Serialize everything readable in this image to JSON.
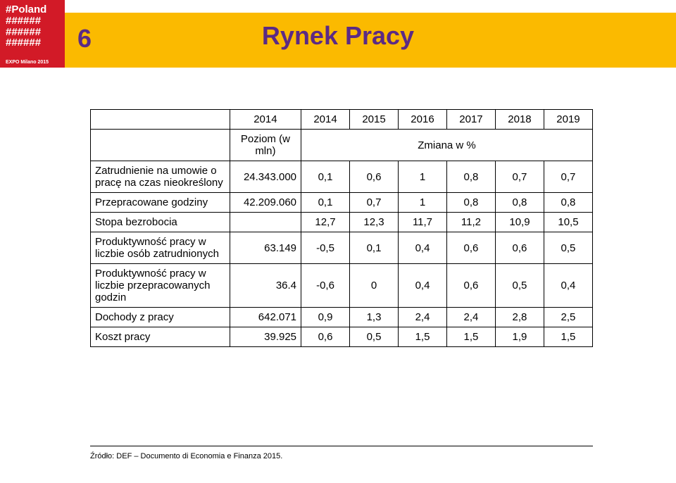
{
  "logo": {
    "line1": "#Poland",
    "hash_rows": [
      "######",
      "######",
      "######"
    ],
    "subtitle": "EXPO Milano 2015"
  },
  "page_number": "6",
  "title": "Rynek Pracy",
  "table": {
    "years": [
      "2014",
      "2014",
      "2015",
      "2016",
      "2017",
      "2018",
      "2019"
    ],
    "subheader_left": "Poziom (w mln)",
    "subheader_right": "Zmiana w %",
    "rows": [
      {
        "label": "Zatrudnienie na umowie o pracę na czas nieokreślony",
        "level": "24.343.000",
        "vals": [
          "0,1",
          "0,6",
          "1",
          "0,8",
          "0,7",
          "0,7"
        ]
      },
      {
        "label": "Przepracowane godziny",
        "level": "42.209.060",
        "vals": [
          "0,1",
          "0,7",
          "1",
          "0,8",
          "0,8",
          "0,8"
        ]
      },
      {
        "label": "Stopa bezrobocia",
        "level": "",
        "vals": [
          "12,7",
          "12,3",
          "11,7",
          "11,2",
          "10,9",
          "10,5"
        ]
      },
      {
        "label": "Produktywność pracy w liczbie osób zatrudnionych",
        "level": "63.149",
        "vals": [
          "-0,5",
          "0,1",
          "0,4",
          "0,6",
          "0,6",
          "0,5"
        ]
      },
      {
        "label": "Produktywność pracy w liczbie przepracowanych godzin",
        "level": "36.4",
        "vals": [
          "-0,6",
          "0",
          "0,4",
          "0,6",
          "0,5",
          "0,4"
        ]
      },
      {
        "label": "Dochody z pracy",
        "level": "642.071",
        "vals": [
          "0,9",
          "1,3",
          "2,4",
          "2,4",
          "2,8",
          "2,5"
        ]
      },
      {
        "label": "Koszt pracy",
        "level": "39.925",
        "vals": [
          "0,6",
          "0,5",
          "1,5",
          "1,5",
          "1,9",
          "1,5"
        ]
      }
    ]
  },
  "source": "Źródło: DEF – Documento di Economia e Finanza 2015.",
  "colors": {
    "brand_purple": "#5b2a85",
    "brand_yellow": "#fbba00",
    "brand_red": "#d21a27",
    "text": "#000000",
    "background": "#ffffff"
  }
}
